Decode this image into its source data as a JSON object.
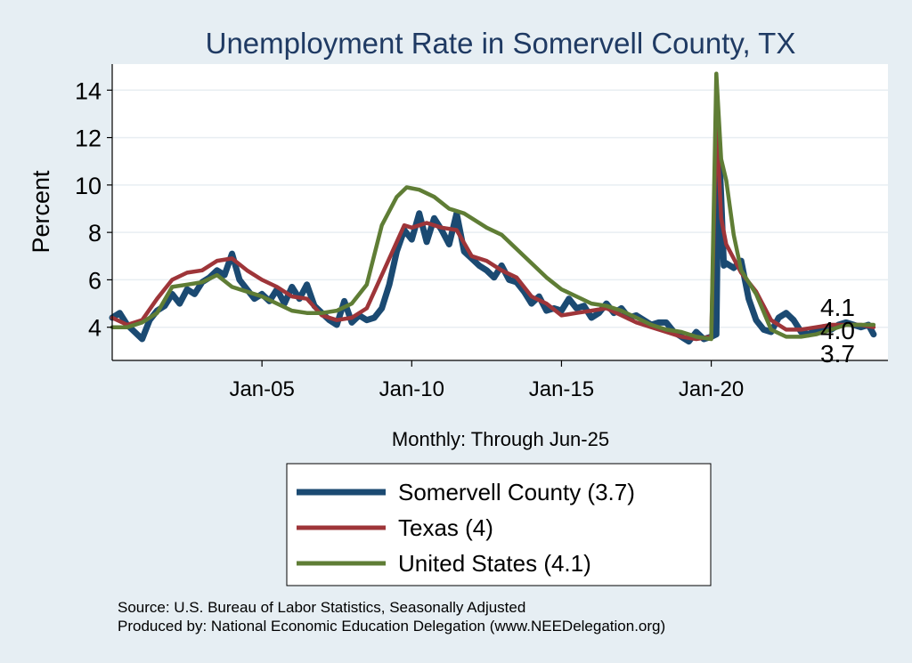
{
  "chart_data": {
    "type": "line",
    "title": "Unemployment Rate in Somervell  County, TX",
    "ylabel": "Percent",
    "xlabel": "Monthly: Through Jun-25",
    "xlim": [
      2000.0,
      2025.9
    ],
    "ylim": [
      2.6,
      15.1
    ],
    "yticks": [
      4,
      6,
      8,
      10,
      12,
      14
    ],
    "ytick_labels": [
      "4",
      "6",
      "8",
      "10",
      "12",
      "14"
    ],
    "xticks": [
      2005,
      2010,
      2015,
      2020
    ],
    "xtick_labels": [
      "Jan-05",
      "Jan-10",
      "Jan-15",
      "Jan-20"
    ],
    "grid": true,
    "series": [
      {
        "name": "Somervell  County",
        "legend_label": "Somervell  County (3.7)",
        "color": "#1b4a72",
        "x": [
          2000.0,
          2000.25,
          2000.5,
          2000.75,
          2001.0,
          2001.25,
          2001.5,
          2001.75,
          2002.0,
          2002.25,
          2002.5,
          2002.75,
          2003.0,
          2003.25,
          2003.5,
          2003.75,
          2004.0,
          2004.25,
          2004.5,
          2004.75,
          2005.0,
          2005.25,
          2005.5,
          2005.75,
          2006.0,
          2006.25,
          2006.5,
          2006.75,
          2007.0,
          2007.25,
          2007.5,
          2007.75,
          2008.0,
          2008.25,
          2008.5,
          2008.75,
          2009.0,
          2009.25,
          2009.5,
          2009.75,
          2010.0,
          2010.25,
          2010.5,
          2010.75,
          2011.0,
          2011.25,
          2011.5,
          2011.75,
          2012.0,
          2012.25,
          2012.5,
          2012.75,
          2013.0,
          2013.25,
          2013.5,
          2013.75,
          2014.0,
          2014.25,
          2014.5,
          2014.75,
          2015.0,
          2015.25,
          2015.5,
          2015.75,
          2016.0,
          2016.25,
          2016.5,
          2016.75,
          2017.0,
          2017.25,
          2017.5,
          2017.75,
          2018.0,
          2018.25,
          2018.5,
          2018.75,
          2019.0,
          2019.25,
          2019.5,
          2019.75,
          2020.0,
          2020.17,
          2020.25,
          2020.33,
          2020.42,
          2020.5,
          2020.75,
          2021.0,
          2021.25,
          2021.5,
          2021.75,
          2022.0,
          2022.25,
          2022.5,
          2022.75,
          2023.0,
          2023.25,
          2023.5,
          2023.75,
          2024.0,
          2024.25,
          2024.5,
          2024.75,
          2025.0,
          2025.25,
          2025.42
        ],
        "values": [
          4.4,
          4.6,
          4.1,
          3.8,
          3.5,
          4.3,
          4.7,
          4.9,
          5.4,
          5.0,
          5.6,
          5.4,
          5.9,
          6.1,
          6.4,
          6.2,
          7.1,
          6.0,
          5.6,
          5.2,
          5.4,
          5.1,
          5.6,
          5.0,
          5.7,
          5.2,
          5.8,
          4.9,
          4.6,
          4.3,
          4.1,
          5.1,
          4.2,
          4.5,
          4.3,
          4.4,
          4.8,
          5.8,
          7.2,
          8.1,
          7.7,
          8.8,
          7.6,
          8.6,
          8.1,
          7.5,
          8.8,
          7.2,
          6.9,
          6.6,
          6.4,
          6.1,
          6.6,
          6.0,
          5.9,
          5.5,
          5.0,
          5.3,
          4.7,
          4.8,
          4.7,
          5.2,
          4.8,
          4.9,
          4.4,
          4.6,
          5.0,
          4.6,
          4.8,
          4.4,
          4.5,
          4.3,
          4.1,
          4.2,
          4.2,
          3.8,
          3.6,
          3.4,
          3.8,
          3.5,
          3.6,
          3.7,
          11.8,
          9.5,
          6.6,
          6.7,
          6.5,
          6.8,
          5.2,
          4.3,
          3.9,
          3.8,
          4.4,
          4.6,
          4.3,
          3.8,
          3.7,
          3.9,
          4.0,
          3.9,
          4.1,
          4.2,
          4.1,
          4.0,
          4.1,
          3.7
        ]
      },
      {
        "name": "Texas",
        "legend_label": "Texas (4)",
        "color": "#9e3539",
        "x": [
          2000.0,
          2000.5,
          2001.0,
          2001.5,
          2002.0,
          2002.5,
          2003.0,
          2003.5,
          2004.0,
          2004.5,
          2005.0,
          2005.5,
          2006.0,
          2006.5,
          2007.0,
          2007.5,
          2008.0,
          2008.5,
          2009.0,
          2009.5,
          2009.75,
          2010.0,
          2010.5,
          2011.0,
          2011.5,
          2012.0,
          2012.5,
          2013.0,
          2013.5,
          2014.0,
          2014.5,
          2015.0,
          2015.5,
          2016.0,
          2016.5,
          2017.0,
          2017.5,
          2018.0,
          2018.5,
          2019.0,
          2019.5,
          2020.0,
          2020.17,
          2020.33,
          2020.5,
          2021.0,
          2021.5,
          2022.0,
          2022.5,
          2023.0,
          2023.5,
          2024.0,
          2024.5,
          2025.0,
          2025.42
        ],
        "values": [
          4.4,
          4.1,
          4.3,
          5.2,
          6.0,
          6.3,
          6.4,
          6.8,
          6.9,
          6.4,
          6.0,
          5.7,
          5.3,
          5.2,
          4.5,
          4.3,
          4.4,
          4.8,
          6.2,
          7.6,
          8.3,
          8.2,
          8.4,
          8.2,
          8.1,
          7.0,
          6.8,
          6.4,
          6.1,
          5.3,
          5.0,
          4.5,
          4.6,
          4.7,
          4.8,
          4.5,
          4.2,
          4.0,
          3.8,
          3.6,
          3.5,
          3.6,
          12.8,
          8.6,
          7.5,
          6.3,
          5.5,
          4.3,
          3.9,
          3.9,
          4.0,
          4.1,
          4.1,
          4.1,
          4.0
        ]
      },
      {
        "name": "United States",
        "legend_label": "United States (4.1)",
        "color": "#5f7d35",
        "x": [
          2000.0,
          2000.5,
          2001.0,
          2001.5,
          2002.0,
          2002.5,
          2003.0,
          2003.5,
          2004.0,
          2004.5,
          2005.0,
          2005.5,
          2006.0,
          2006.5,
          2007.0,
          2007.5,
          2008.0,
          2008.5,
          2009.0,
          2009.5,
          2009.83,
          2010.25,
          2010.75,
          2011.25,
          2011.75,
          2012.5,
          2013.0,
          2013.5,
          2014.0,
          2014.5,
          2015.0,
          2015.5,
          2016.0,
          2016.5,
          2017.0,
          2017.5,
          2018.0,
          2018.5,
          2019.0,
          2019.5,
          2020.0,
          2020.17,
          2020.33,
          2020.5,
          2020.75,
          2021.0,
          2021.5,
          2022.0,
          2022.5,
          2023.0,
          2023.5,
          2024.0,
          2024.5,
          2025.0,
          2025.42
        ],
        "values": [
          4.0,
          4.0,
          4.2,
          4.6,
          5.7,
          5.8,
          5.9,
          6.2,
          5.7,
          5.5,
          5.3,
          5.0,
          4.7,
          4.6,
          4.6,
          4.7,
          5.0,
          5.8,
          8.3,
          9.5,
          9.9,
          9.8,
          9.5,
          9.0,
          8.8,
          8.2,
          7.9,
          7.3,
          6.7,
          6.1,
          5.6,
          5.3,
          5.0,
          4.9,
          4.7,
          4.4,
          4.1,
          3.9,
          3.8,
          3.6,
          3.5,
          14.7,
          11.1,
          10.2,
          7.9,
          6.4,
          5.4,
          3.9,
          3.6,
          3.6,
          3.7,
          3.9,
          4.1,
          4.1,
          4.1
        ]
      }
    ],
    "end_labels": [
      "4.1",
      "4.0",
      "3.7"
    ]
  },
  "source_line1": "Source: U.S. Bureau of Labor Statistics, Seasonally Adjusted",
  "source_line2": "Produced by: National Economic Education Delegation (www.NEEDelegation.org)"
}
